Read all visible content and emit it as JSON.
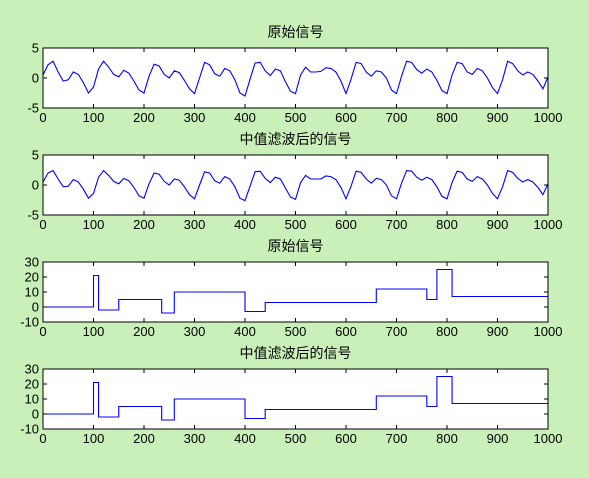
{
  "figure": {
    "background": "#c8f0b8",
    "axes_background": "#ffffff",
    "line_color": "#0000ff"
  },
  "chart_data": [
    {
      "type": "line",
      "title": "原始信号",
      "xlabel": "",
      "ylabel": "",
      "xlim": [
        0,
        1000
      ],
      "ylim": [
        -5,
        5
      ],
      "xticks": [
        0,
        100,
        200,
        300,
        400,
        500,
        600,
        700,
        800,
        900,
        1000
      ],
      "yticks": [
        -5,
        0,
        5
      ],
      "grid": false,
      "series": [
        {
          "x": [
            0,
            10,
            20,
            30,
            40,
            50,
            60,
            70,
            80,
            90,
            100,
            110,
            120,
            130,
            140,
            150,
            160,
            170,
            180,
            190,
            200,
            210,
            220,
            230,
            240,
            250,
            260,
            270,
            280,
            290,
            300,
            310,
            320,
            330,
            340,
            350,
            360,
            370,
            380,
            390,
            400,
            410,
            420,
            430,
            440,
            450,
            460,
            470,
            480,
            490,
            500,
            510,
            520,
            530,
            540,
            550,
            560,
            570,
            580,
            590,
            600,
            610,
            620,
            630,
            640,
            650,
            660,
            670,
            680,
            690,
            700,
            710,
            720,
            730,
            740,
            750,
            760,
            770,
            780,
            790,
            800,
            810,
            820,
            830,
            840,
            850,
            860,
            870,
            880,
            890,
            900,
            910,
            920,
            930,
            940,
            950,
            960,
            970,
            980,
            990,
            1000
          ],
          "values": [
            0.5,
            2.2,
            2.8,
            1.0,
            -0.5,
            -0.3,
            1.0,
            0.6,
            -0.8,
            -2.5,
            -1.5,
            1.5,
            2.8,
            1.8,
            0.6,
            0.2,
            1.3,
            0.8,
            -0.5,
            -2.0,
            -2.5,
            0.3,
            2.3,
            2.0,
            0.6,
            0.0,
            1.2,
            0.9,
            -0.4,
            -1.8,
            -2.6,
            0.0,
            2.6,
            2.2,
            0.7,
            0.3,
            1.6,
            1.2,
            -0.3,
            -2.5,
            -3.0,
            -0.2,
            2.5,
            2.6,
            1.2,
            0.4,
            1.5,
            1.2,
            -0.6,
            -2.2,
            -2.6,
            0.5,
            1.8,
            1.0,
            1.0,
            1.1,
            1.7,
            1.6,
            1.0,
            -0.5,
            -2.6,
            -0.2,
            2.6,
            2.4,
            1.0,
            0.3,
            1.2,
            1.0,
            0.0,
            -2.0,
            -2.6,
            0.3,
            2.8,
            2.6,
            1.4,
            0.8,
            1.5,
            1.0,
            -0.4,
            -2.1,
            -2.6,
            0.5,
            2.6,
            2.4,
            1.0,
            0.6,
            1.6,
            1.2,
            0.0,
            -1.6,
            -2.6,
            -0.3,
            2.8,
            2.4,
            1.2,
            0.5,
            1.0,
            0.6,
            -0.5,
            -1.8,
            0.2
          ]
        }
      ]
    },
    {
      "type": "line",
      "title": "中值滤波后的信号",
      "xlabel": "",
      "ylabel": "",
      "xlim": [
        0,
        1000
      ],
      "ylim": [
        -5,
        5
      ],
      "xticks": [
        0,
        100,
        200,
        300,
        400,
        500,
        600,
        700,
        800,
        900,
        1000
      ],
      "yticks": [
        -5,
        0,
        5
      ],
      "grid": false,
      "series": [
        {
          "x": [
            0,
            10,
            20,
            30,
            40,
            50,
            60,
            70,
            80,
            90,
            100,
            110,
            120,
            130,
            140,
            150,
            160,
            170,
            180,
            190,
            200,
            210,
            220,
            230,
            240,
            250,
            260,
            270,
            280,
            290,
            300,
            310,
            320,
            330,
            340,
            350,
            360,
            370,
            380,
            390,
            400,
            410,
            420,
            430,
            440,
            450,
            460,
            470,
            480,
            490,
            500,
            510,
            520,
            530,
            540,
            550,
            560,
            570,
            580,
            590,
            600,
            610,
            620,
            630,
            640,
            650,
            660,
            670,
            680,
            690,
            700,
            710,
            720,
            730,
            740,
            750,
            760,
            770,
            780,
            790,
            800,
            810,
            820,
            830,
            840,
            850,
            860,
            870,
            880,
            890,
            900,
            910,
            920,
            930,
            940,
            950,
            960,
            970,
            980,
            990,
            1000
          ],
          "values": [
            0.5,
            2.0,
            2.4,
            1.0,
            -0.3,
            -0.2,
            0.9,
            0.5,
            -0.7,
            -2.2,
            -1.4,
            1.3,
            2.4,
            1.6,
            0.6,
            0.2,
            1.1,
            0.7,
            -0.4,
            -1.8,
            -2.2,
            0.2,
            2.0,
            1.8,
            0.6,
            0.0,
            1.0,
            0.8,
            -0.3,
            -1.6,
            -2.3,
            0.0,
            2.2,
            2.0,
            0.7,
            0.3,
            1.4,
            1.0,
            -0.3,
            -2.2,
            -2.6,
            -0.2,
            2.2,
            2.3,
            1.1,
            0.4,
            1.3,
            1.0,
            -0.5,
            -2.0,
            -2.4,
            0.4,
            1.6,
            1.0,
            1.0,
            1.0,
            1.5,
            1.4,
            0.9,
            -0.4,
            -2.3,
            -0.2,
            2.3,
            2.1,
            1.0,
            0.3,
            1.1,
            0.9,
            0.0,
            -1.8,
            -2.3,
            0.3,
            2.4,
            2.3,
            1.3,
            0.8,
            1.3,
            0.9,
            -0.3,
            -1.9,
            -2.3,
            0.4,
            2.3,
            2.1,
            1.0,
            0.6,
            1.4,
            1.0,
            0.0,
            -1.4,
            -2.3,
            -0.3,
            2.4,
            2.1,
            1.1,
            0.5,
            0.9,
            0.5,
            -0.4,
            -1.6,
            0.2
          ]
        }
      ]
    },
    {
      "type": "line",
      "title": "原始信号",
      "xlabel": "",
      "ylabel": "",
      "xlim": [
        0,
        1000
      ],
      "ylim": [
        -10,
        30
      ],
      "xticks": [
        0,
        100,
        200,
        300,
        400,
        500,
        600,
        700,
        800,
        900,
        1000
      ],
      "yticks": [
        -10,
        0,
        10,
        20,
        30
      ],
      "grid": false,
      "series": [
        {
          "x": [
            0,
            100,
            100,
            110,
            110,
            150,
            150,
            235,
            235,
            260,
            260,
            400,
            400,
            440,
            440,
            660,
            660,
            760,
            760,
            780,
            780,
            810,
            810,
            1000
          ],
          "values": [
            0,
            0,
            21,
            21,
            -2,
            -2,
            5,
            5,
            -4,
            -4,
            10,
            10,
            -3,
            -3,
            3,
            3,
            12,
            12,
            5,
            5,
            25,
            25,
            7,
            7
          ]
        }
      ]
    },
    {
      "type": "line",
      "title": "中值滤波后的信号",
      "xlabel": "",
      "ylabel": "",
      "xlim": [
        0,
        1000
      ],
      "ylim": [
        -10,
        30
      ],
      "xticks": [
        0,
        100,
        200,
        300,
        400,
        500,
        600,
        700,
        800,
        900,
        1000
      ],
      "yticks": [
        -10,
        0,
        10,
        20,
        30
      ],
      "grid": false,
      "series": [
        {
          "x": [
            0,
            100,
            100,
            110,
            110,
            150,
            150,
            235,
            235,
            260,
            260,
            400,
            400,
            440,
            440,
            660,
            660,
            760,
            760,
            780,
            780,
            810,
            810,
            1000
          ],
          "values": [
            0,
            0,
            21,
            21,
            -2,
            -2,
            5,
            5,
            -4,
            -4,
            10,
            10,
            -3,
            -3,
            3,
            3,
            12,
            12,
            5,
            5,
            25,
            25,
            7,
            7
          ]
        }
      ]
    }
  ]
}
